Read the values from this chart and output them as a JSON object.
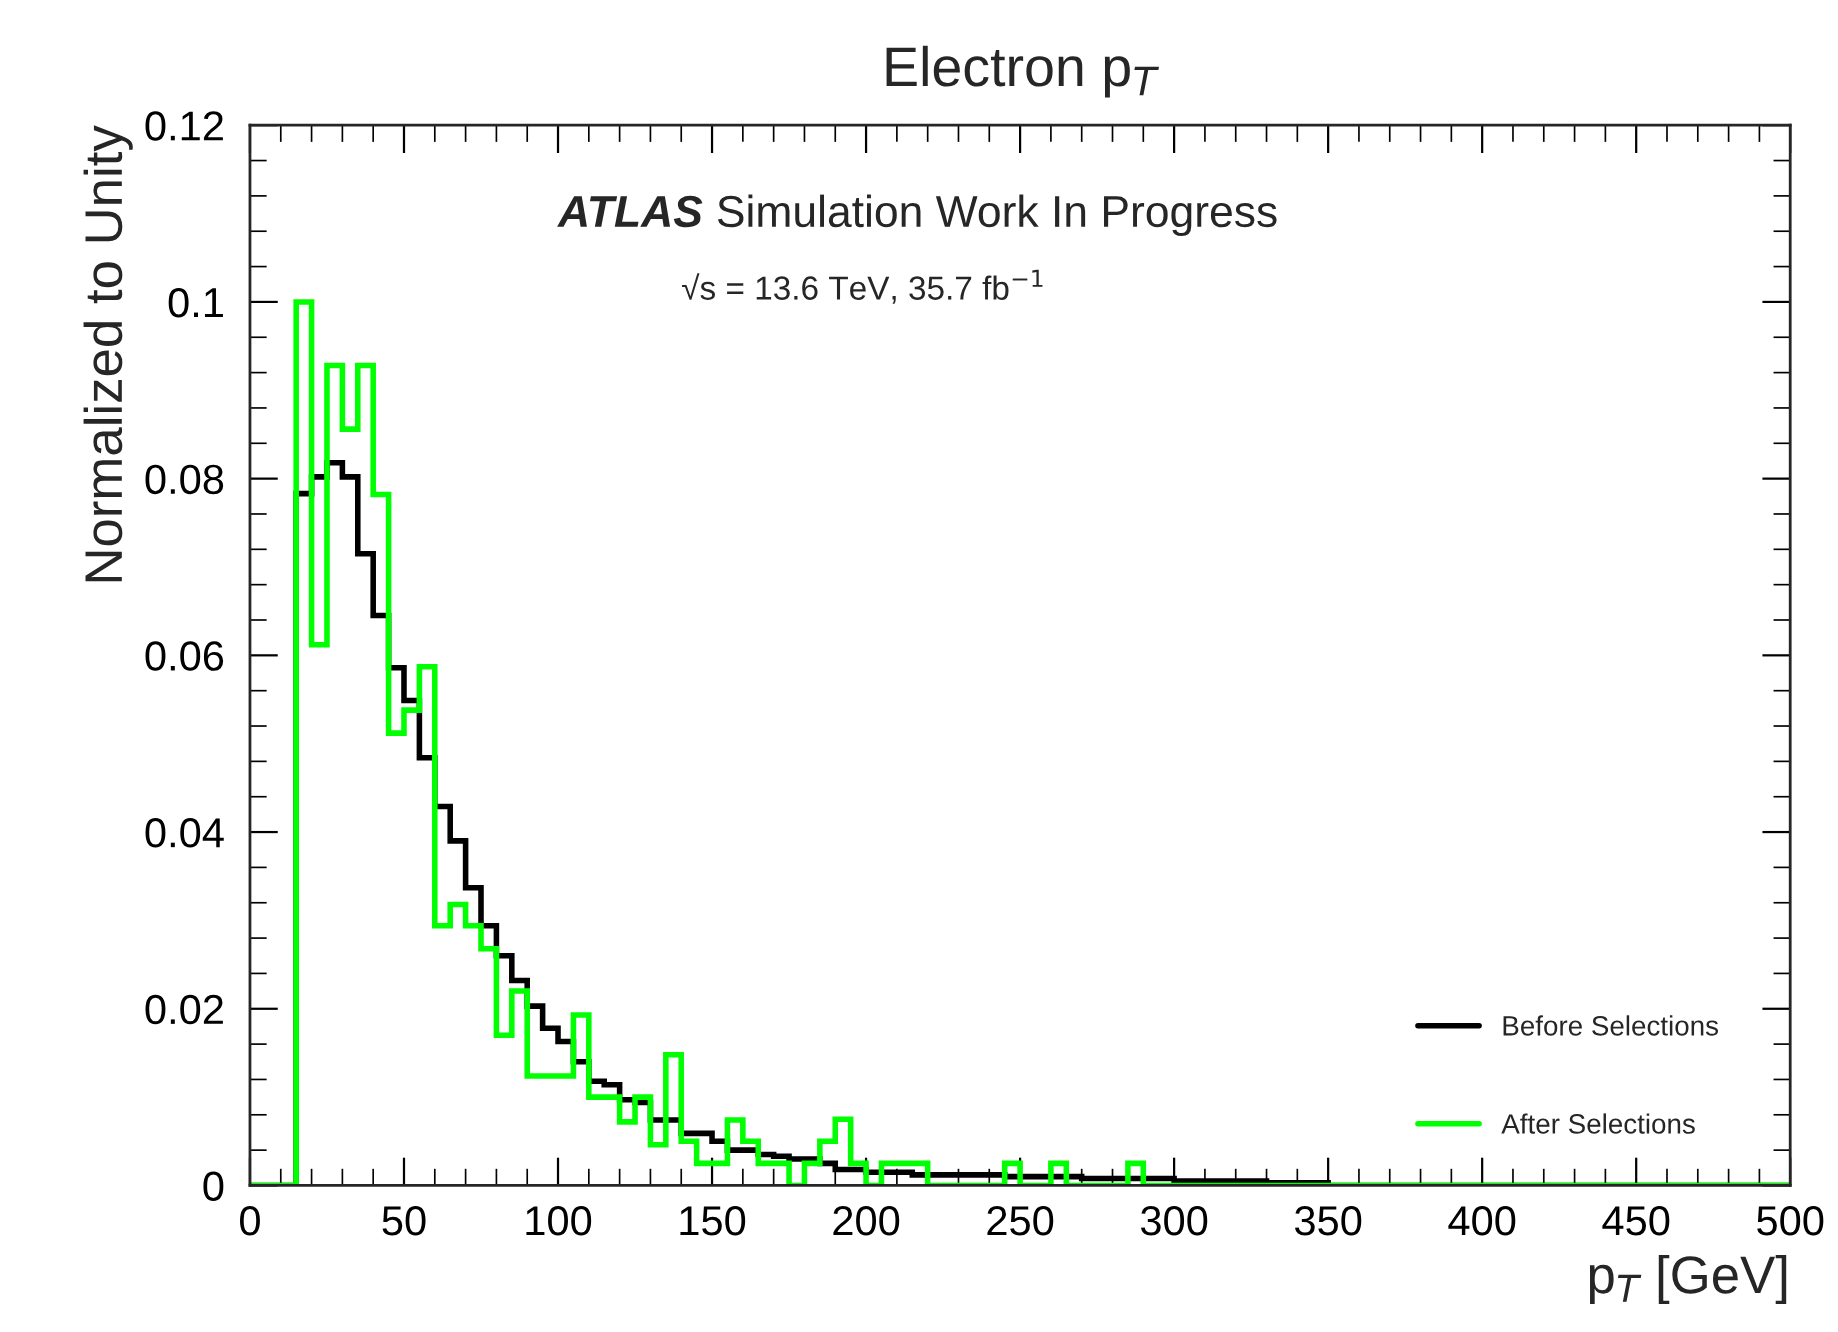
{
  "chart_data": {
    "type": "histogram",
    "title": "Electron p$_{T}$",
    "xlabel": "p$_{T}$ [GeV]",
    "ylabel": "Normalized to Unity",
    "annotations": [
      "ATLAS",
      "Simulation Work In Progress",
      "√s = 13.6 TeV, 35.7 fb$^{−1}$"
    ],
    "bins": [
      0,
      5,
      10,
      15,
      20,
      25,
      30,
      35,
      40,
      45,
      50,
      55,
      60,
      65,
      70,
      75,
      80,
      85,
      90,
      95,
      100,
      105,
      110,
      115,
      120,
      125,
      130,
      135,
      140,
      145,
      150,
      155,
      160,
      165,
      170,
      175,
      180,
      185,
      190,
      195,
      200,
      205,
      210,
      215,
      220,
      225,
      230,
      235,
      240,
      245,
      250,
      255,
      260,
      265,
      270,
      275,
      280,
      285,
      290,
      295,
      300,
      305,
      310,
      315,
      320,
      325,
      330,
      335,
      340,
      345,
      350,
      355,
      360,
      365,
      370,
      375,
      380,
      385,
      390,
      395,
      400,
      405,
      410,
      415,
      420,
      425,
      430,
      435,
      440,
      445,
      450,
      455,
      460,
      465,
      470,
      475,
      480,
      485,
      490,
      495,
      500
    ],
    "series": [
      {
        "name": "Before Selections",
        "color": "#000000",
        "values": [
          0,
          0,
          0,
          0.0783,
          0.0802,
          0.0818,
          0.0802,
          0.0715,
          0.0645,
          0.0586,
          0.0549,
          0.0484,
          0.0429,
          0.039,
          0.0337,
          0.0294,
          0.026,
          0.0232,
          0.0203,
          0.0178,
          0.0163,
          0.014,
          0.0118,
          0.0114,
          0.0097,
          0.0094,
          0.0074,
          0.0074,
          0.0059,
          0.0059,
          0.005,
          0.004,
          0.004,
          0.0035,
          0.0033,
          0.003,
          0.003,
          0.0025,
          0.0018,
          0.0018,
          0.0015,
          0.0015,
          0.0015,
          0.0012,
          0.0012,
          0.0012,
          0.0012,
          0.0012,
          0.0012,
          0.001,
          0.001,
          0.001,
          0.001,
          0.001,
          0.0008,
          0.0008,
          0.0008,
          0.0008,
          0.0008,
          0.0008,
          0.0005,
          0.0005,
          0.0005,
          0.0005,
          0.0005,
          0.0005,
          0.0003,
          0.0003,
          0.0003,
          0.0003,
          0,
          0,
          0,
          0,
          0,
          0,
          0,
          0,
          0,
          0,
          0,
          0,
          0,
          0,
          0,
          0,
          0,
          0,
          0,
          0,
          0,
          0,
          0,
          0,
          0,
          0,
          0,
          0,
          0,
          0
        ]
      },
      {
        "name": "After Selections",
        "color": "#00ff00",
        "values": [
          0,
          0,
          0,
          0.1,
          0.0612,
          0.0928,
          0.0856,
          0.0928,
          0.0782,
          0.0512,
          0.0538,
          0.0587,
          0.0294,
          0.0318,
          0.0294,
          0.0268,
          0.017,
          0.022,
          0.0124,
          0.0124,
          0.0124,
          0.0193,
          0.01,
          0.01,
          0.0072,
          0.01,
          0.0046,
          0.0148,
          0.005,
          0.0025,
          0.0025,
          0.0074,
          0.005,
          0.0025,
          0.0025,
          0,
          0.0025,
          0.005,
          0.0075,
          0.0025,
          0,
          0.0025,
          0.0025,
          0.0025,
          0,
          0,
          0,
          0,
          0,
          0.0025,
          0,
          0,
          0.0025,
          0,
          0,
          0,
          0,
          0.0025,
          0,
          0,
          0,
          0,
          0,
          0,
          0,
          0,
          0,
          0,
          0,
          0,
          0,
          0,
          0,
          0,
          0,
          0,
          0,
          0,
          0,
          0,
          0,
          0,
          0,
          0,
          0,
          0,
          0,
          0,
          0,
          0,
          0,
          0,
          0,
          0,
          0,
          0,
          0,
          0,
          0,
          0
        ]
      }
    ],
    "xlim": [
      0,
      500
    ],
    "xticks": [
      0,
      50,
      100,
      150,
      200,
      250,
      300,
      350,
      400,
      450,
      500
    ],
    "ylim": [
      0,
      0.12
    ],
    "yticks": [
      {
        "value": 0,
        "label": "0"
      },
      0.02,
      0.04,
      0.06,
      0.08,
      {
        "value": 0.1,
        "label": "0.1"
      },
      0.12
    ],
    "legend": "bottom right",
    "grid": false
  }
}
